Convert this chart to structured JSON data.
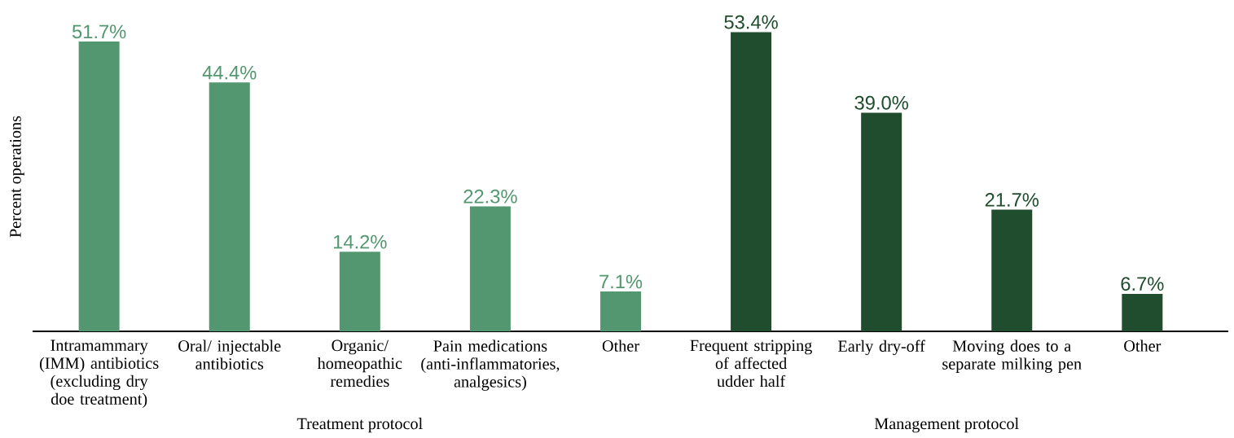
{
  "chart_data": {
    "type": "bar",
    "ylabel": "Percent operations",
    "categories": [
      "Intramammary (IMM) antibiotics (excluding dry doe treatment)",
      "Oral/ injectable antibiotics",
      "Organic/ homeopathic remedies",
      "Pain medications (anti-inflammatories, analgesics)",
      "Other",
      "Frequent stripping of affected udder half",
      "Early dry-off",
      "Moving does to a separate milking pen",
      "Other"
    ],
    "values": [
      51.7,
      44.4,
      14.2,
      22.3,
      7.1,
      53.4,
      39.0,
      21.7,
      6.7
    ],
    "value_labels": [
      "51.7%",
      "44.4%",
      "14.2%",
      "22.3%",
      "7.1%",
      "53.4%",
      "39.0%",
      "21.7%",
      "6.7%"
    ],
    "colors": [
      "#52976f",
      "#52976f",
      "#52976f",
      "#52976f",
      "#52976f",
      "#1f4d2d",
      "#1f4d2d",
      "#1f4d2d",
      "#1f4d2d"
    ],
    "annotations": [
      "Treatment protocol",
      "Management protocol"
    ],
    "grid": false
  }
}
